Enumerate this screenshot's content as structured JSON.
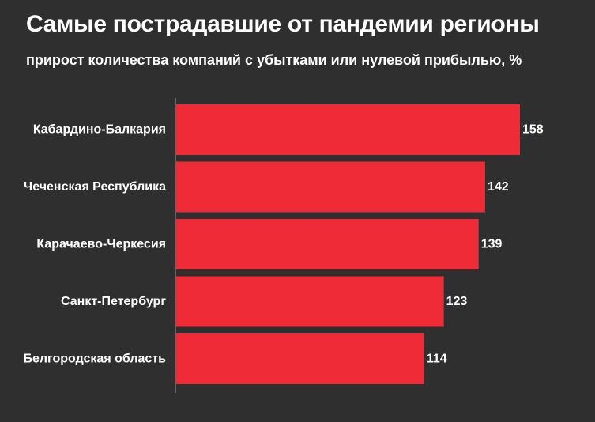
{
  "header": {
    "title": "Самые пострадавшие от пандемии регионы",
    "subtitle": "прирост количества компаний с убытками или нулевой прибылью, %"
  },
  "colors": {
    "background": "#2f2f2f",
    "bar": "#ef2b37",
    "axis": "#9a9a9a",
    "text": "#ffffff"
  },
  "chart_data": {
    "type": "bar",
    "orientation": "horizontal",
    "title": "Самые пострадавшие от пандемии регионы",
    "subtitle": "прирост количества компаний с убытками или нулевой прибылью, %",
    "categories": [
      "Кабардино-Балкария",
      "Чеченская Республика",
      "Карачаево-Черкесия",
      "Санкт-Петербург",
      "Белгородская область"
    ],
    "values": [
      158,
      142,
      139,
      123,
      114
    ],
    "value_labels": [
      "158",
      "142",
      "139",
      "123",
      "114"
    ],
    "xlim": [
      0,
      158
    ],
    "grid": false,
    "legend": "none"
  }
}
